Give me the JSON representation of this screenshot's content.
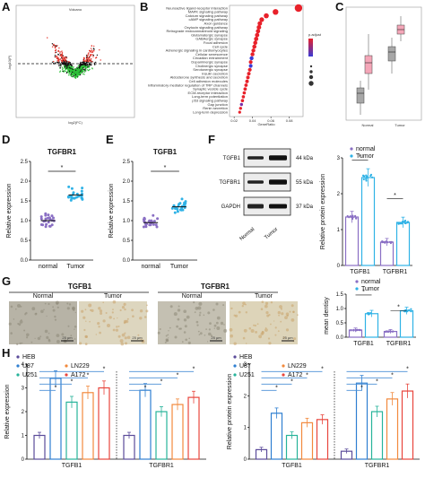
{
  "panels": {
    "A": "A",
    "B": "B",
    "C": "C",
    "D": "D",
    "E": "E",
    "F": "F",
    "G": "G",
    "H": "H"
  },
  "volcano": {
    "title": "Volcano",
    "ylabel": "-log10(P)",
    "xlabel": "log2(FC)"
  },
  "kegg": {
    "terms": [
      "Neuroactive ligand-receptor interaction",
      "MAPK signaling pathway",
      "Calcium signaling pathway",
      "cAMP signaling pathway",
      "Axon guidance",
      "Oxytocin signaling pathway",
      "Retrograde endocannabinoid signaling",
      "Glutamatergic synapse",
      "GABAergic synapse",
      "Focal adhesion",
      "Cell cycle",
      "Adrenergic signaling in cardiomyocytes",
      "Cellular senescence",
      "Circadian entrainment",
      "Dopaminergic synapse",
      "Cholinergic synapse",
      "Serotonergic synapse",
      "Insulin secretion",
      "Aldosterone synthesis and secretion",
      "Cell adhesion molecules",
      "Inflammatory mediator regulation of TRP channels",
      "Synaptic vesicle cycle",
      "ECM-receptor interaction",
      "Long-term potentiation",
      "p53 signaling pathway",
      "Gap junction",
      "Renin secretion",
      "Long-term depression"
    ],
    "xvalues": [
      0.09,
      0.065,
      0.055,
      0.05,
      0.048,
      0.047,
      0.046,
      0.045,
      0.044,
      0.043,
      0.042,
      0.041,
      0.04,
      0.039,
      0.038,
      0.038,
      0.037,
      0.036,
      0.035,
      0.034,
      0.033,
      0.032,
      0.031,
      0.03,
      0.029,
      0.028,
      0.027,
      0.026
    ],
    "xlabel": "GeneRatio",
    "xticks": [
      "0.02",
      "0.04",
      "0.06",
      "0.08"
    ],
    "legend_title": "p.adjust"
  },
  "boxC": {
    "groups": [
      "Normal",
      "Tumor"
    ]
  },
  "chart_data": [
    {
      "type": "scatter",
      "title": "TGFBR1",
      "ylabel": "Relative expression",
      "categories": [
        "normal",
        "Tumor"
      ],
      "ylim": [
        0,
        2.5
      ],
      "yticks": [
        "0.0",
        "0.5",
        "1.0",
        "1.5",
        "2.0",
        "2.5"
      ],
      "means": [
        1.0,
        1.65
      ],
      "significance": "*"
    },
    {
      "type": "scatter",
      "title": "TGFB1",
      "ylabel": "Relative expression",
      "categories": [
        "normal",
        "Tumor"
      ],
      "ylim": [
        0,
        2.5
      ],
      "yticks": [
        "0.0",
        "0.5",
        "1.0",
        "1.5",
        "2.0",
        "2.5"
      ],
      "means": [
        0.95,
        1.35
      ],
      "significance": "*"
    },
    {
      "type": "bar",
      "ylabel": "Relative protein expression",
      "categories": [
        "TGFB1",
        "TGFBR1"
      ],
      "ylim": [
        0,
        3
      ],
      "yticks": [
        "0",
        "1",
        "2",
        "3"
      ],
      "series": [
        {
          "name": "normal",
          "values": [
            1.35,
            0.65
          ]
        },
        {
          "name": "Tumor",
          "values": [
            2.45,
            1.2
          ]
        }
      ],
      "legend": "top-right"
    },
    {
      "type": "bar",
      "ylabel": "mean dentisy",
      "categories": [
        "TGFB1",
        "TGFBR1"
      ],
      "ylim": [
        0,
        1.5
      ],
      "yticks": [
        "0.0",
        "0.5",
        "1.0",
        "1.5"
      ],
      "series": [
        {
          "name": "normal",
          "values": [
            0.25,
            0.2
          ]
        },
        {
          "name": "Tumor",
          "values": [
            0.82,
            0.92
          ]
        }
      ],
      "legend": "top-right"
    },
    {
      "type": "bar",
      "ylabel": "Relative expression",
      "categories": [
        "TGFB1",
        "TGFBR1"
      ],
      "ylim": [
        0,
        4
      ],
      "yticks": [
        "0",
        "1",
        "2",
        "3",
        "4"
      ],
      "series": [
        {
          "name": "HEB",
          "values": [
            1.0,
            1.0
          ]
        },
        {
          "name": "U87",
          "values": [
            3.4,
            2.9
          ]
        },
        {
          "name": "U251",
          "values": [
            2.4,
            2.0
          ]
        },
        {
          "name": "LN229",
          "values": [
            2.8,
            2.3
          ]
        },
        {
          "name": "A172",
          "values": [
            3.0,
            2.6
          ]
        }
      ]
    },
    {
      "type": "bar",
      "ylabel": "Relative protein expression",
      "categories": [
        "TGFB1",
        "TGFBR1"
      ],
      "ylim": [
        0,
        3
      ],
      "yticks": [
        "0",
        "1",
        "2",
        "3"
      ],
      "series": [
        {
          "name": "HEB",
          "values": [
            0.3,
            0.25
          ]
        },
        {
          "name": "U87",
          "values": [
            1.45,
            2.4
          ]
        },
        {
          "name": "U251",
          "values": [
            0.75,
            1.5
          ]
        },
        {
          "name": "LN229",
          "values": [
            1.15,
            1.9
          ]
        },
        {
          "name": "A172",
          "values": [
            1.25,
            2.15
          ]
        }
      ]
    }
  ],
  "blot": {
    "rows": [
      {
        "name": "TGFB1",
        "kda": "44 kDa"
      },
      {
        "name": "TGFBR1",
        "kda": "55 kDa"
      },
      {
        "name": "GAPDH",
        "kda": "37 kDa"
      }
    ],
    "lanes": [
      "Normal",
      "Tumor"
    ]
  },
  "ihc": {
    "markers": [
      "TGFB1",
      "TGFBR1"
    ],
    "groups": [
      "Normal",
      "Tumor",
      "Normal",
      "Tumor"
    ],
    "scale": "25 μm"
  },
  "legend2": [
    "normal",
    "Tumor"
  ],
  "legend5": [
    "HEB",
    "U87",
    "U251",
    "LN229",
    "A172"
  ],
  "colors": {
    "normal": "#8a6fc4",
    "tumor": "#2fb2e6",
    "HEB": "#5b4b9a",
    "U87": "#2f7fd1",
    "U251": "#27b39a",
    "LN229": "#f2893c",
    "A172": "#e8453c",
    "sig": "#4a8fd6"
  }
}
